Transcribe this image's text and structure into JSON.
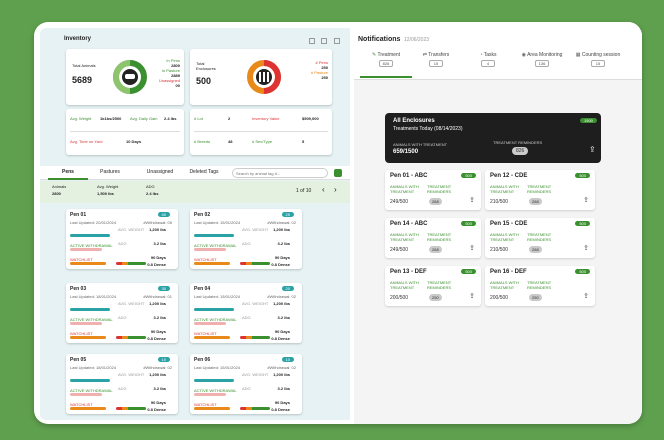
{
  "inventory": {
    "title": "Inventory",
    "total_animals_label": "Total Animals",
    "total_animals": "5689",
    "in_pens_label": "In Pens",
    "in_pens": "2800",
    "in_pasture_label": "In Pasture",
    "in_pasture": "2889",
    "unassigned_label": "Unassigned",
    "unassigned": "00",
    "enclosures_label": "Total Enclosures",
    "enclosures": "500",
    "pens_label": "# Pens",
    "pens": "250",
    "pasture_label": "# Pasture",
    "pasture": "250",
    "avg_weight_label": "Avg. Weight",
    "avg_weight": "1k1bs/2500",
    "avg_daily_gain_label": "Avg. Daily Gain",
    "avg_daily_gain": "2.4 lbs",
    "avg_time_label": "Avg. Time on Yard",
    "avg_time": "10 Days",
    "lot_label": "# Lot",
    "lot": "2",
    "inventory_value_label": "Inventory Value",
    "inventory_value": "$509,000",
    "breeds_label": "# Breeds",
    "breeds": "48",
    "sex_type_label": "# Sex/Type",
    "sex_type": "5"
  },
  "tabs": [
    "Pens",
    "Pastures",
    "Unassigned",
    "Deleted Tags"
  ],
  "search_placeholder": "Search by animal tag #...",
  "summary": {
    "animals_label": "Animals",
    "animals": "2800",
    "avg_weight_label": "Avg. Weight",
    "avg_weight": "1,500 lbs",
    "adg_label": "ADG",
    "adg": "2.4 lbs"
  },
  "pagination": "1 of 10",
  "pens": [
    {
      "name": "Pen 01",
      "count": "40",
      "updated": "Last Updated: 20/01/2024",
      "withdrawn": "#Withdrawal: 05"
    },
    {
      "name": "Pen 02",
      "count": "25",
      "updated": "Last Updated: 15/01/2024",
      "withdrawn": "#Withdrawal: 02"
    },
    {
      "name": "Pen 03",
      "count": "30",
      "updated": "Last Updated: 18/01/2024",
      "withdrawn": "#Withdrawal: 01"
    },
    {
      "name": "Pen 04",
      "count": "20",
      "updated": "Last Updated: 15/01/2024",
      "withdrawn": "#Withdrawal: 02"
    },
    {
      "name": "Pen 05",
      "count": "10",
      "updated": "Last Updated: 18/01/2024",
      "withdrawn": "#Withdrawal: 02"
    },
    {
      "name": "Pen 06",
      "count": "10",
      "updated": "Last Updated: 15/01/2024",
      "withdrawn": "#Withdrawal: 02"
    }
  ],
  "pen_labels": {
    "active": "ACTIVE WITHDRAWAL",
    "watchlist": "WATCHLIST",
    "health": "AVG. HEALTH SCORE",
    "weight": "AVG. WEIGHT",
    "adg": "ADG",
    "weight_val": "1,200 lbs",
    "adg_val": "3.2 lbs",
    "days": "90 Days",
    "score": "0.8 Dense"
  },
  "notifications": {
    "title": "Notifications",
    "date": "12/06/2023",
    "tabs": [
      {
        "label": "Treatment",
        "badge": "826"
      },
      {
        "label": "Transfers",
        "badge": "15"
      },
      {
        "label": "Tasks",
        "badge": "4"
      },
      {
        "label": "Area Monitoring",
        "badge": "136"
      },
      {
        "label": "Counting session",
        "badge": "15"
      }
    ],
    "all": {
      "title": "All Enclosures",
      "subtitle": "Treatments Today (08/14/2023)",
      "count": "1500",
      "awt_label": "ANIMALS WITH TREATMENT",
      "awt": "659/1500",
      "rem_label": "TREATMENT REMINDERS",
      "rem": "826"
    },
    "awt_label": "ANIMALS WITH TREATMENT",
    "rem_label": "TREATMENT REMINDERS",
    "cards": [
      {
        "name": "Pen 01 - ABC",
        "count": "500",
        "awt": "249/500",
        "rem": "268"
      },
      {
        "name": "Pen 12 - CDE",
        "count": "500",
        "awt": "210/500",
        "rem": "268"
      },
      {
        "name": "Pen 14 - ABC",
        "count": "500",
        "awt": "249/500",
        "rem": "268"
      },
      {
        "name": "Pen 15 - CDE",
        "count": "500",
        "awt": "210/500",
        "rem": "268"
      },
      {
        "name": "Pen 13 - DEF",
        "count": "500",
        "awt": "200/500",
        "rem": "250"
      },
      {
        "name": "Pen 16 - DEF",
        "count": "500",
        "awt": "200/500",
        "rem": "250"
      }
    ]
  }
}
